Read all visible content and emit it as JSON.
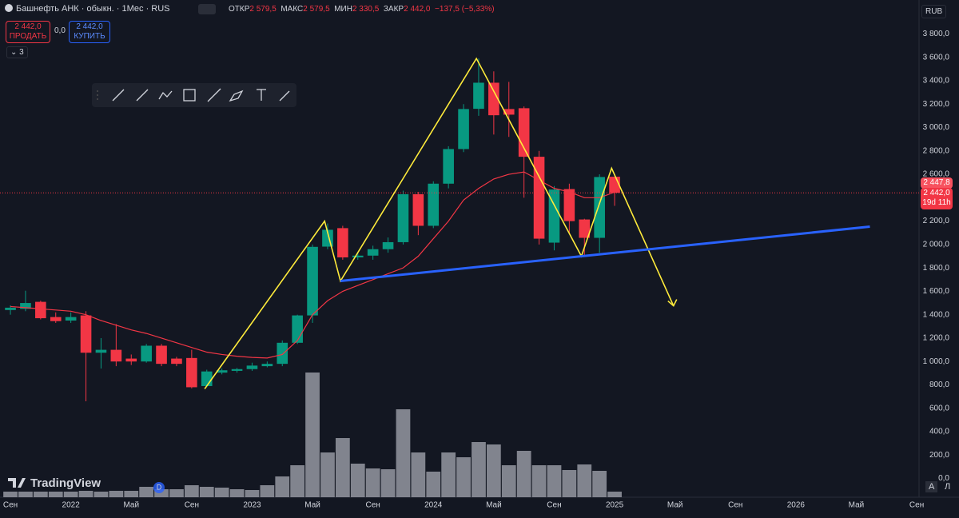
{
  "header": {
    "title": "Башнефть АНК · обыкн. · 1Мес · RUS",
    "open_label": "ОТКР",
    "open": "2 579,5",
    "high_label": "МАКС",
    "high": "2 579,5",
    "low_label": "МИН",
    "low": "2 330,5",
    "close_label": "ЗАКР",
    "close": "2 442,0",
    "change": "−137,5 (−5,33%)",
    "sell_price": "2 442,0",
    "sell_label": "ПРОДАТЬ",
    "spread": "0,0",
    "buy_price": "2 442,0",
    "buy_label": "КУПИТЬ",
    "indicators": "3",
    "currency": "RUB",
    "ma_label": "2 447,8",
    "last_price": "2 442,0",
    "countdown": "19d 11h"
  },
  "footer": {
    "auto": "A",
    "log": "Л"
  },
  "logo": "TradingView",
  "marker": "D",
  "chart_data": {
    "type": "candlestick",
    "x": [
      0,
      1,
      2,
      3,
      4,
      5,
      6,
      7,
      8,
      9,
      10,
      11,
      12,
      13,
      14,
      15,
      16,
      17,
      18,
      19,
      20,
      21,
      22,
      23,
      24,
      25,
      26,
      27,
      28,
      29,
      30,
      31,
      32,
      33,
      34,
      35,
      36,
      37,
      38,
      39,
      40
    ],
    "open": [
      1440,
      1450,
      1510,
      1380,
      1350,
      1394,
      1075,
      1100,
      1025,
      1000,
      1135,
      1025,
      1030,
      790,
      905,
      920,
      935,
      960,
      980,
      1160,
      1394,
      1982,
      2140,
      1890,
      1905,
      1960,
      2020,
      2430,
      2160,
      2520,
      2816,
      3160,
      3383,
      3158,
      3165,
      2750,
      2016,
      2474,
      2214,
      2057,
      2579.5
    ],
    "high": [
      1480,
      1605,
      1520,
      1420,
      1420,
      1430,
      1200,
      1320,
      1060,
      1150,
      1150,
      1040,
      1100,
      930,
      940,
      945,
      990,
      1000,
      1180,
      1400,
      2000,
      2180,
      2160,
      1930,
      1990,
      2060,
      2460,
      2450,
      2540,
      2840,
      3200,
      3590,
      3480,
      3390,
      3180,
      2800,
      2500,
      2520,
      2220,
      2600,
      2579.5
    ],
    "low": [
      1400,
      1430,
      1360,
      1330,
      1330,
      660,
      940,
      960,
      970,
      990,
      960,
      960,
      770,
      780,
      890,
      905,
      920,
      950,
      960,
      1150,
      1330,
      1960,
      1870,
      1870,
      1870,
      1930,
      2000,
      2080,
      2140,
      2480,
      2790,
      3100,
      2940,
      2920,
      2400,
      2000,
      1950,
      2100,
      1900,
      1930,
      2330.5
    ],
    "close": [
      1460,
      1500,
      1370,
      1345,
      1380,
      1075,
      1100,
      1000,
      1000,
      1135,
      980,
      980,
      780,
      915,
      925,
      935,
      965,
      980,
      1160,
      1394,
      1980,
      2126,
      1890,
      1905,
      1960,
      2020,
      2430,
      2160,
      2520,
      2816,
      3158,
      3383,
      3105,
      3110,
      2750,
      2050,
      2470,
      2200,
      2057,
      2577,
      2442
    ],
    "up_color": "#089981",
    "down_color": "#f23645",
    "ma": [
      1470,
      1460,
      1450,
      1440,
      1430,
      1400,
      1350,
      1310,
      1270,
      1240,
      1200,
      1160,
      1120,
      1080,
      1060,
      1045,
      1035,
      1030,
      1060,
      1180,
      1400,
      1520,
      1600,
      1650,
      1700,
      1750,
      1800,
      1900,
      2050,
      2200,
      2380,
      2480,
      2560,
      2600,
      2620,
      2550,
      2480,
      2450,
      2400,
      2400,
      2447.8
    ],
    "ma_color": "#f23645",
    "volume": [
      7,
      7,
      7,
      7,
      7,
      8,
      7,
      8,
      8,
      13,
      10,
      10,
      15,
      13,
      12,
      10,
      9,
      15,
      26,
      40,
      156,
      56,
      74,
      42,
      36,
      35,
      110,
      56,
      32,
      56,
      50,
      69,
      66,
      40,
      58,
      40,
      40,
      34,
      41,
      33,
      7
    ],
    "volume_lim": [
      0,
      200
    ],
    "volume_color": "#9598a1",
    "drawings": [
      {
        "color": "#ffeb3b",
        "x": [
          12.86,
          20.8,
          21.85,
          30.85,
          37.8,
          39.8,
          43.9
        ],
        "y": [
          766,
          2200,
          1688,
          3590,
          1900,
          2652,
          1476
        ]
      },
      {
        "color": "#2962ff",
        "x": [
          21.85,
          56.9
        ],
        "y": [
          1688,
          2153
        ]
      }
    ],
    "xlim": [
      -0.69,
      60.26
    ],
    "ylim": [
      -160,
      4090
    ],
    "xticks": [
      {
        "value": 0,
        "label": "Сен"
      },
      {
        "value": 4,
        "label": "2022"
      },
      {
        "value": 8,
        "label": "Май"
      },
      {
        "value": 12,
        "label": "Сен"
      },
      {
        "value": 16,
        "label": "2023"
      },
      {
        "value": 20,
        "label": "Май"
      },
      {
        "value": 24,
        "label": "Сен"
      },
      {
        "value": 28,
        "label": "2024"
      },
      {
        "value": 32,
        "label": "Май"
      },
      {
        "value": 36,
        "label": "Сен"
      },
      {
        "value": 40,
        "label": "2025"
      },
      {
        "value": 44,
        "label": "Май"
      },
      {
        "value": 48,
        "label": "Сен"
      },
      {
        "value": 52,
        "label": "2026"
      },
      {
        "value": 56,
        "label": "Май"
      },
      {
        "value": 60,
        "label": "Сен"
      }
    ],
    "yticks": [
      {
        "value": 0,
        "label": "0,0"
      },
      {
        "value": 200,
        "label": "200,0"
      },
      {
        "value": 400,
        "label": "400,0"
      },
      {
        "value": 600,
        "label": "600,0"
      },
      {
        "value": 800,
        "label": "800,0"
      },
      {
        "value": 1000,
        "label": "1 000,0"
      },
      {
        "value": 1200,
        "label": "1 200,0"
      },
      {
        "value": 1400,
        "label": "1 400,0"
      },
      {
        "value": 1600,
        "label": "1 600,0"
      },
      {
        "value": 1800,
        "label": "1 800,0"
      },
      {
        "value": 2000,
        "label": "2 000,0"
      },
      {
        "value": 2200,
        "label": "2 200,0"
      },
      {
        "value": 2400,
        "label": "2 400,0"
      },
      {
        "value": 2600,
        "label": "2 600,0"
      },
      {
        "value": 2800,
        "label": "2 800,0"
      },
      {
        "value": 3000,
        "label": "3 000,0"
      },
      {
        "value": 3200,
        "label": "3 200,0"
      },
      {
        "value": 3400,
        "label": "3 400,0"
      },
      {
        "value": 3600,
        "label": "3 600,0"
      },
      {
        "value": 3800,
        "label": "3 800,0"
      }
    ],
    "last_line_color": "#f23645"
  }
}
